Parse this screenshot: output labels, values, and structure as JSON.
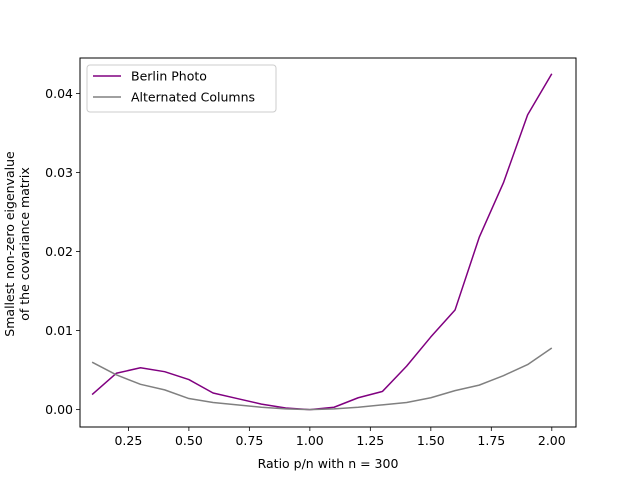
{
  "chart_data": {
    "type": "line",
    "title": "",
    "xlabel": "Ratio p/n with n = 300",
    "ylabel_lines": [
      "Smallest non-zero eigenvalue",
      "of the covariance matrix"
    ],
    "xlim": [
      0.05,
      2.1
    ],
    "ylim": [
      -0.0022,
      0.0445
    ],
    "xticks": [
      0.25,
      0.5,
      0.75,
      1.0,
      1.25,
      1.5,
      1.75,
      2.0
    ],
    "xtick_labels": [
      "0.25",
      "0.50",
      "0.75",
      "1.00",
      "1.25",
      "1.50",
      "1.75",
      "2.00"
    ],
    "yticks": [
      0.0,
      0.01,
      0.02,
      0.03,
      0.04
    ],
    "ytick_labels": [
      "0.00",
      "0.01",
      "0.02",
      "0.03",
      "0.04"
    ],
    "grid": false,
    "legend_position": "upper-left",
    "x": [
      0.1,
      0.2,
      0.3,
      0.4,
      0.5,
      0.6,
      0.7,
      0.8,
      0.9,
      1.0,
      1.1,
      1.2,
      1.3,
      1.4,
      1.5,
      1.6,
      1.7,
      1.8,
      1.9,
      2.0
    ],
    "series": [
      {
        "name": "Berlin Photo",
        "color": "#800080",
        "values": [
          0.0019,
          0.0046,
          0.0053,
          0.0048,
          0.0038,
          0.0021,
          0.0014,
          0.0007,
          0.0002,
          0.0,
          0.0003,
          0.0015,
          0.0023,
          0.0055,
          0.0092,
          0.0126,
          0.0218,
          0.0287,
          0.0373,
          0.0425
        ]
      },
      {
        "name": "Alternated Columns",
        "color": "#808080",
        "values": [
          0.006,
          0.0044,
          0.0032,
          0.0025,
          0.0014,
          0.0009,
          0.0006,
          0.0003,
          0.0001,
          0.0,
          0.0001,
          0.0003,
          0.0006,
          0.0009,
          0.0015,
          0.0024,
          0.0031,
          0.0043,
          0.0057,
          0.0078
        ]
      }
    ]
  }
}
